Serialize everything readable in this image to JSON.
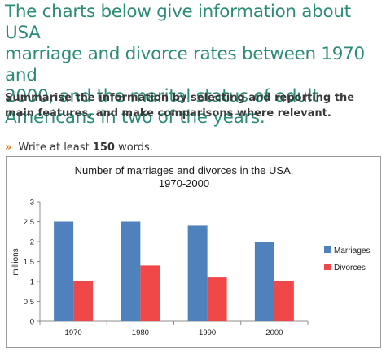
{
  "task": {
    "heading_lines": [
      "The charts below give information about USA",
      "marriage and divorce rates between 1970 and",
      "2000, and the marital status of adult",
      "Americans in two of the years."
    ],
    "instruction_lines": [
      "Summarise the information by selecting and reporting the",
      "main features, and make comparisons where relevant."
    ],
    "word_prefix": "»",
    "word_text_before": "Write at least",
    "word_count": "150",
    "word_text_after": "words."
  },
  "chart_data": {
    "type": "bar",
    "title_lines": [
      "Number of marriages and divorces in the USA,",
      "1970-2000"
    ],
    "categories": [
      "1970",
      "1980",
      "1990",
      "2000"
    ],
    "series": [
      {
        "name": "Marriages",
        "values": [
          2.5,
          2.5,
          2.4,
          2.0
        ],
        "color": "#4f81bd"
      },
      {
        "name": "Divorces",
        "values": [
          1.0,
          1.4,
          1.1,
          1.0
        ],
        "color": "#f04848"
      }
    ],
    "ylabel": "millions",
    "xlabel": "",
    "ylim": [
      0,
      3
    ],
    "yticks": [
      "0",
      "0.5",
      "1",
      "1.5",
      "2",
      "2.5",
      "3"
    ],
    "grid": false,
    "legend_position": "right"
  }
}
